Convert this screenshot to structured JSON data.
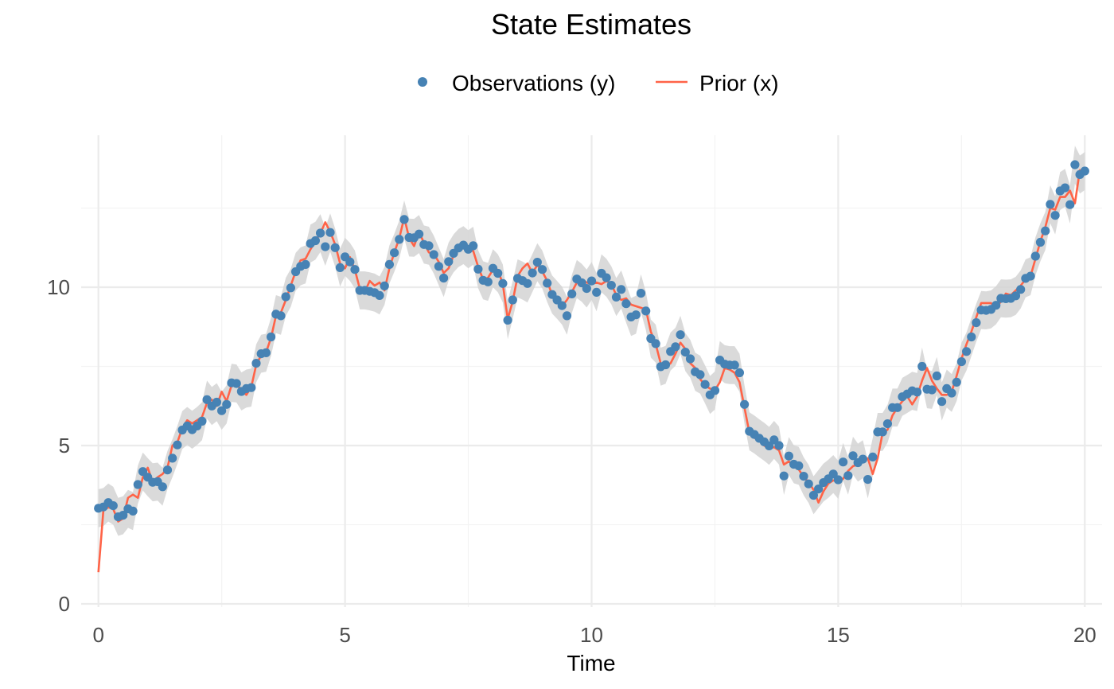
{
  "chart_data": {
    "type": "line",
    "title": "State Estimates",
    "xlabel": "Time",
    "ylabel": "",
    "xlim": [
      -0.35,
      20.35
    ],
    "ylim": [
      -0.1,
      14.8
    ],
    "x_ticks": [
      0,
      5,
      10,
      15,
      20
    ],
    "x_tick_labels": [
      "0",
      "5",
      "10",
      "15",
      "20"
    ],
    "y_ticks": [
      0,
      5,
      10
    ],
    "y_tick_labels": [
      "0",
      "5",
      "10"
    ],
    "grid": true,
    "legend_position": "top",
    "band_half_width": 0.6,
    "colors": {
      "observations": "#4682B4",
      "prior": "#FF6347",
      "band": "#D3D3D3",
      "grid_major": "#EBEBEB",
      "grid_minor": "#F3F3F3"
    },
    "series": [
      {
        "name": "Observations (y)",
        "kind": "points",
        "x": [
          0,
          0.1,
          0.2,
          0.3,
          0.4,
          0.5,
          0.6,
          0.7,
          0.8,
          0.9,
          1.0,
          1.1,
          1.2,
          1.3,
          1.4,
          1.5,
          1.6,
          1.7,
          1.8,
          1.9,
          2.0,
          2.1,
          2.2,
          2.3,
          2.4,
          2.5,
          2.6,
          2.7,
          2.8,
          2.9,
          3.0,
          3.1,
          3.2,
          3.3,
          3.4,
          3.5,
          3.6,
          3.7,
          3.8,
          3.9,
          4.0,
          4.1,
          4.2,
          4.3,
          4.4,
          4.5,
          4.6,
          4.7,
          4.8,
          4.9,
          5.0,
          5.1,
          5.2,
          5.3,
          5.4,
          5.5,
          5.6,
          5.7,
          5.8,
          5.9,
          6.0,
          6.1,
          6.2,
          6.3,
          6.4,
          6.5,
          6.6,
          6.7,
          6.8,
          6.9,
          7.0,
          7.1,
          7.2,
          7.3,
          7.4,
          7.5,
          7.6,
          7.7,
          7.8,
          7.9,
          8.0,
          8.1,
          8.2,
          8.3,
          8.4,
          8.5,
          8.6,
          8.7,
          8.8,
          8.9,
          9.0,
          9.1,
          9.2,
          9.3,
          9.4,
          9.5,
          9.6,
          9.7,
          9.8,
          9.9,
          10.0,
          10.1,
          10.2,
          10.3,
          10.4,
          10.5,
          10.6,
          10.7,
          10.8,
          10.9,
          11.0,
          11.1,
          11.2,
          11.3,
          11.4,
          11.5,
          11.6,
          11.7,
          11.8,
          11.9,
          12.0,
          12.1,
          12.2,
          12.3,
          12.4,
          12.5,
          12.6,
          12.7,
          12.8,
          12.9,
          13.0,
          13.1,
          13.2,
          13.3,
          13.4,
          13.5,
          13.6,
          13.7,
          13.8,
          13.9,
          14.0,
          14.1,
          14.2,
          14.3,
          14.4,
          14.5,
          14.6,
          14.7,
          14.8,
          14.9,
          15.0,
          15.1,
          15.2,
          15.3,
          15.4,
          15.5,
          15.6,
          15.7,
          15.8,
          15.9,
          16.0,
          16.1,
          16.2,
          16.3,
          16.4,
          16.5,
          16.6,
          16.7,
          16.8,
          16.9,
          17.0,
          17.1,
          17.2,
          17.3,
          17.4,
          17.5,
          17.6,
          17.7,
          17.8,
          17.9,
          18.0,
          18.1,
          18.2,
          18.3,
          18.4,
          18.5,
          18.6,
          18.7,
          18.8,
          18.9,
          19.0,
          19.1,
          19.2,
          19.3,
          19.4,
          19.5,
          19.6,
          19.7,
          19.8,
          19.9,
          20.0
        ],
        "y": [
          3.02,
          3.06,
          3.2,
          3.1,
          2.75,
          2.8,
          3.0,
          2.93,
          3.77,
          4.18,
          4.0,
          3.84,
          3.86,
          3.7,
          4.23,
          4.6,
          5.02,
          5.49,
          5.62,
          5.5,
          5.62,
          5.77,
          6.45,
          6.25,
          6.37,
          6.1,
          6.3,
          6.98,
          6.96,
          6.71,
          6.8,
          6.83,
          7.6,
          7.9,
          7.93,
          8.43,
          9.15,
          9.1,
          9.7,
          9.98,
          10.49,
          10.66,
          10.72,
          11.38,
          11.47,
          11.71,
          11.28,
          11.73,
          11.25,
          10.62,
          10.96,
          10.8,
          10.56,
          9.9,
          9.9,
          9.87,
          9.83,
          9.74,
          10.04,
          10.72,
          11.09,
          11.51,
          12.14,
          11.57,
          11.56,
          11.68,
          11.35,
          11.31,
          11.03,
          10.66,
          10.29,
          10.81,
          11.07,
          11.24,
          11.33,
          11.2,
          11.31,
          10.57,
          10.22,
          10.17,
          10.6,
          10.44,
          10.12,
          8.96,
          9.6,
          10.28,
          10.21,
          10.12,
          10.45,
          10.79,
          10.56,
          10.13,
          9.77,
          9.6,
          9.42,
          9.1,
          9.79,
          10.26,
          10.14,
          9.96,
          10.2,
          9.84,
          10.44,
          10.3,
          10.06,
          9.69,
          9.93,
          9.48,
          9.06,
          9.13,
          9.81,
          9.25,
          8.38,
          8.22,
          7.49,
          7.55,
          7.97,
          8.12,
          8.5,
          7.95,
          7.74,
          7.33,
          7.24,
          6.93,
          6.6,
          6.74,
          7.7,
          7.57,
          7.54,
          7.54,
          7.3,
          6.3,
          5.45,
          5.35,
          5.23,
          5.12,
          4.99,
          5.18,
          5.0,
          4.04,
          4.67,
          4.41,
          4.36,
          4.03,
          3.79,
          3.43,
          3.63,
          3.83,
          3.95,
          4.1,
          3.92,
          4.48,
          4.05,
          4.68,
          4.46,
          4.57,
          3.93,
          4.64,
          5.43,
          5.43,
          5.69,
          6.2,
          6.2,
          6.54,
          6.63,
          6.73,
          6.69,
          7.5,
          6.78,
          6.76,
          7.2,
          6.39,
          6.8,
          6.66,
          7.0,
          7.65,
          7.97,
          8.43,
          8.88,
          9.28,
          9.27,
          9.3,
          9.43,
          9.65,
          9.64,
          9.65,
          9.73,
          9.93,
          10.28,
          10.35,
          10.98,
          11.42,
          11.78,
          12.62,
          12.27,
          13.04,
          13.14,
          12.61,
          13.87,
          13.56,
          13.67
        ]
      },
      {
        "name": "Prior (x)",
        "kind": "line",
        "x": [
          0,
          0.1,
          0.2,
          0.3,
          0.4,
          0.5,
          0.6,
          0.7,
          0.8,
          0.9,
          1.0,
          1.1,
          1.2,
          1.3,
          1.4,
          1.5,
          1.6,
          1.7,
          1.8,
          1.9,
          2.0,
          2.1,
          2.2,
          2.3,
          2.4,
          2.5,
          2.6,
          2.7,
          2.8,
          2.9,
          3.0,
          3.1,
          3.2,
          3.3,
          3.4,
          3.5,
          3.6,
          3.7,
          3.8,
          3.9,
          4.0,
          4.1,
          4.2,
          4.3,
          4.4,
          4.5,
          4.6,
          4.7,
          4.8,
          4.9,
          5.0,
          5.1,
          5.2,
          5.3,
          5.4,
          5.5,
          5.6,
          5.7,
          5.8,
          5.9,
          6.0,
          6.1,
          6.2,
          6.3,
          6.4,
          6.5,
          6.6,
          6.7,
          6.8,
          6.9,
          7.0,
          7.1,
          7.2,
          7.3,
          7.4,
          7.5,
          7.6,
          7.7,
          7.8,
          7.9,
          8.0,
          8.1,
          8.2,
          8.3,
          8.4,
          8.5,
          8.6,
          8.7,
          8.8,
          8.9,
          9.0,
          9.1,
          9.2,
          9.3,
          9.4,
          9.5,
          9.6,
          9.7,
          9.8,
          9.9,
          10.0,
          10.1,
          10.2,
          10.3,
          10.4,
          10.5,
          10.6,
          10.7,
          10.8,
          10.9,
          11.0,
          11.1,
          11.2,
          11.3,
          11.4,
          11.5,
          11.6,
          11.7,
          11.8,
          11.9,
          12.0,
          12.1,
          12.2,
          12.3,
          12.4,
          12.5,
          12.6,
          12.7,
          12.8,
          12.9,
          13.0,
          13.1,
          13.2,
          13.3,
          13.4,
          13.5,
          13.6,
          13.7,
          13.8,
          13.9,
          14.0,
          14.1,
          14.2,
          14.3,
          14.4,
          14.5,
          14.6,
          14.7,
          14.8,
          14.9,
          15.0,
          15.1,
          15.2,
          15.3,
          15.4,
          15.5,
          15.6,
          15.7,
          15.8,
          15.9,
          16.0,
          16.1,
          16.2,
          16.3,
          16.4,
          16.5,
          16.6,
          16.7,
          16.8,
          16.9,
          17.0,
          17.1,
          17.2,
          17.3,
          17.4,
          17.5,
          17.6,
          17.7,
          17.8,
          17.9,
          18.0,
          18.1,
          18.2,
          18.3,
          18.4,
          18.5,
          18.6,
          18.7,
          18.8,
          18.9,
          19.0,
          19.1,
          19.2,
          19.3,
          19.4,
          19.5,
          19.6,
          19.7,
          19.8,
          19.9,
          20.0
        ],
        "y": [
          1.0,
          2.95,
          3.05,
          3.0,
          2.6,
          2.7,
          3.35,
          3.45,
          3.35,
          4.0,
          4.3,
          3.85,
          4.0,
          4.1,
          4.3,
          5.0,
          5.1,
          5.55,
          5.8,
          5.7,
          5.8,
          5.9,
          6.35,
          6.45,
          6.25,
          6.7,
          6.4,
          6.9,
          6.95,
          6.75,
          6.6,
          6.85,
          7.55,
          7.85,
          7.95,
          8.4,
          9.1,
          9.2,
          9.6,
          10.05,
          10.5,
          10.85,
          10.9,
          11.2,
          11.45,
          11.7,
          12.05,
          11.75,
          11.35,
          10.75,
          10.6,
          10.95,
          10.55,
          9.95,
          9.85,
          10.2,
          10.05,
          10.15,
          9.9,
          10.6,
          11.1,
          11.55,
          12.2,
          11.55,
          11.3,
          11.75,
          11.4,
          11.1,
          11.05,
          10.8,
          10.45,
          10.6,
          11.0,
          11.3,
          11.25,
          11.15,
          11.15,
          10.65,
          10.25,
          10.3,
          10.55,
          10.55,
          10.1,
          9.0,
          9.55,
          10.35,
          10.6,
          10.75,
          10.45,
          10.7,
          10.5,
          10.2,
          9.75,
          9.7,
          9.4,
          9.6,
          9.85,
          10.15,
          10.25,
          10.15,
          10.1,
          10.15,
          10.1,
          10.2,
          10.1,
          9.75,
          9.6,
          9.65,
          9.45,
          9.4,
          9.35,
          9.3,
          8.6,
          8.2,
          7.6,
          7.5,
          7.6,
          7.9,
          8.25,
          8.05,
          7.6,
          7.45,
          7.1,
          6.9,
          6.8,
          6.75,
          7.0,
          7.45,
          7.4,
          7.3,
          7.0,
          6.2,
          5.4,
          5.25,
          5.15,
          5.0,
          4.9,
          4.95,
          4.85,
          4.4,
          4.5,
          4.35,
          4.25,
          4.0,
          3.85,
          3.6,
          3.2,
          3.55,
          3.8,
          3.9,
          3.85,
          3.95,
          4.2,
          4.35,
          4.4,
          4.55,
          4.6,
          4.1,
          4.6,
          5.4,
          5.5,
          5.95,
          6.2,
          6.4,
          6.55,
          6.3,
          6.55,
          7.05,
          7.45,
          7.05,
          6.8,
          6.6,
          6.6,
          6.7,
          7.2,
          7.75,
          8.2,
          8.6,
          9.05,
          9.5,
          9.5,
          9.5,
          9.35,
          9.55,
          9.8,
          9.75,
          9.9,
          10.05,
          10.25,
          10.35,
          10.9,
          11.45,
          11.9,
          12.5,
          12.45,
          12.85,
          12.85,
          13.05,
          12.65,
          13.7,
          13.6
        ]
      }
    ]
  }
}
